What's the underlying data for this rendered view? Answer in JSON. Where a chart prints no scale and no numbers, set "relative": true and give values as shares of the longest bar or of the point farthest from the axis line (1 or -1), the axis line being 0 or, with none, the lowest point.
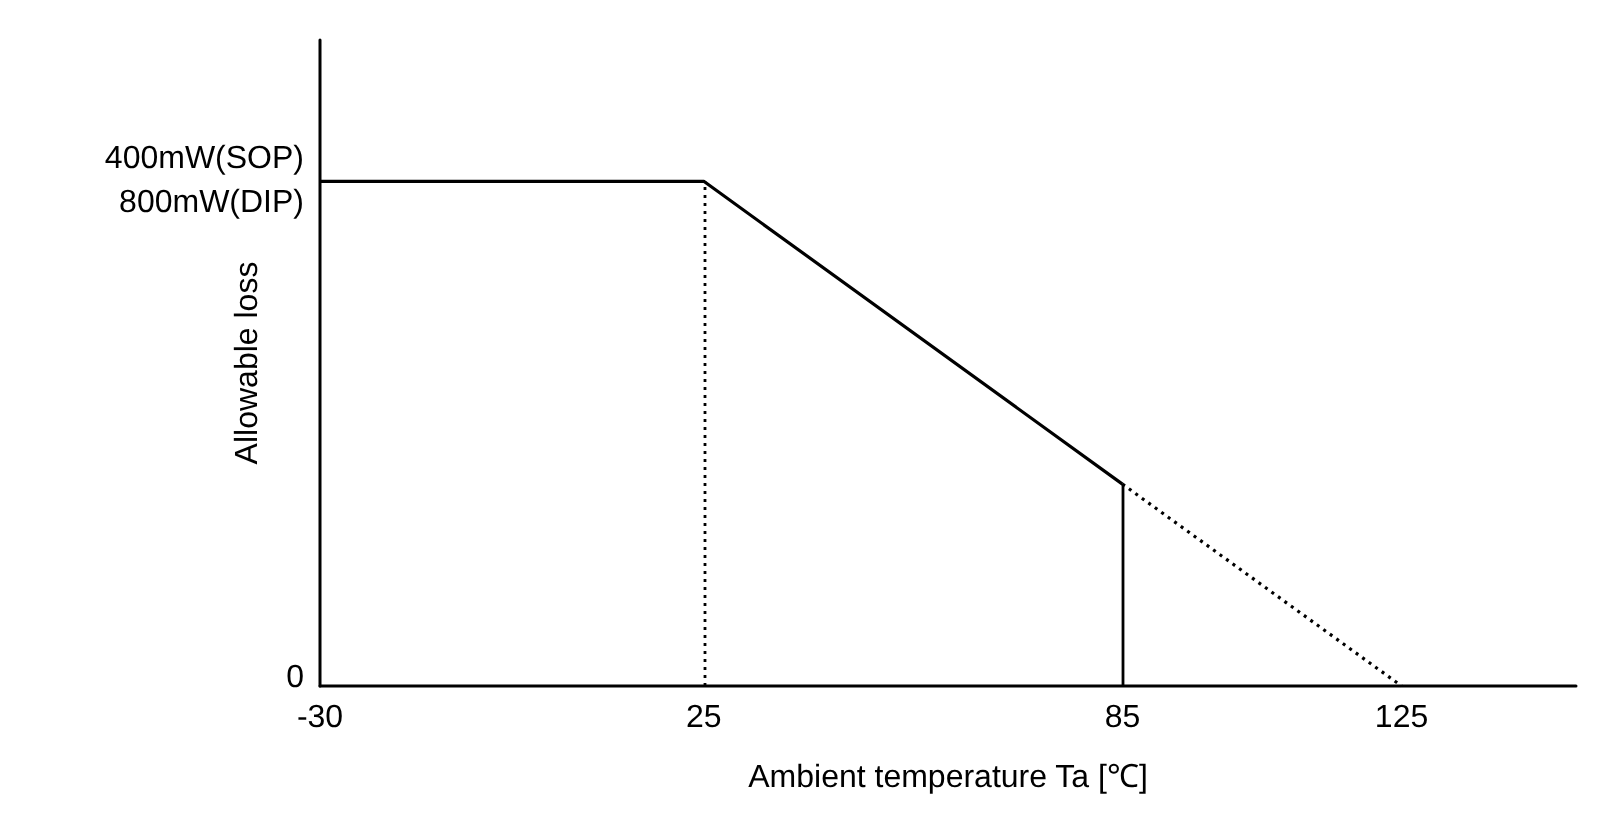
{
  "chart_data": {
    "type": "line",
    "xlabel": "Ambient temperature Ta [℃]",
    "ylabel": "Allowable loss",
    "xlim": [
      -30,
      150
    ],
    "xticks": [
      -30,
      25,
      85,
      125
    ],
    "relative": true,
    "annotations": [
      {
        "text": "400mW(SOP)\n800mW(DIP)",
        "x": -30,
        "y": 1
      },
      "0"
    ],
    "grid": false,
    "marker": "none",
    "line_style": "solid",
    "ref_lines": [
      {
        "axis": "x",
        "value": 25,
        "line_style": "dotted",
        "color": "#000000"
      },
      {
        "axis": "x",
        "value": 85,
        "line_style": "solid",
        "color": "#000000"
      }
    ],
    "series": [
      {
        "color": "#000000",
        "x": [
          -30,
          25,
          85
        ],
        "values": [
          1,
          1,
          0.4
        ]
      },
      {
        "color": "#000000",
        "x": [
          85,
          125
        ],
        "values": [
          0.4,
          0
        ],
        "line_style": "dotted"
      }
    ]
  }
}
